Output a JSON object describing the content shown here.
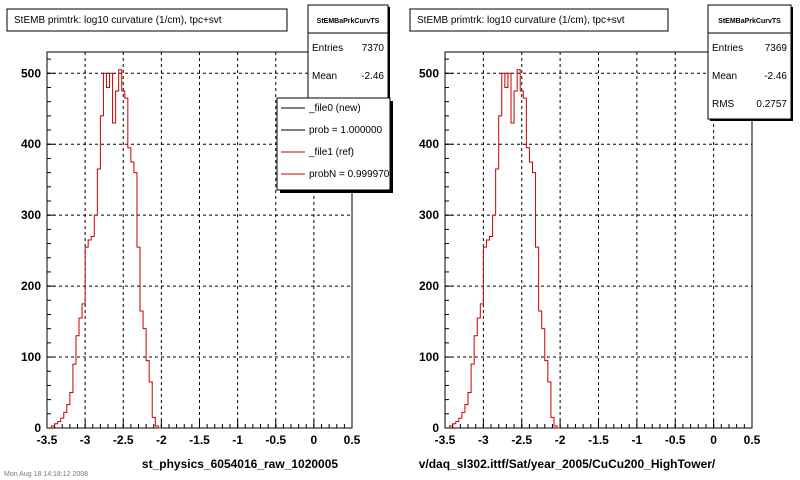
{
  "footer_text": "Mon Aug 18 14:18:12 2008",
  "chart_data": [
    {
      "type": "histogram",
      "title": "StEMB primtrk: log10 curvature (1/cm), tpc+svt",
      "xlabel": "st_physics_6054016_raw_1020005",
      "ylabel": "",
      "xlim": [
        -3.5,
        0.5
      ],
      "ylim": [
        0,
        530
      ],
      "x_ticks": [
        -3.5,
        -3,
        -2.5,
        -2,
        -1.5,
        -1,
        -0.5,
        0,
        0.5
      ],
      "x_tick_labels": [
        "-3.5",
        "-3",
        "-2.5",
        "-2",
        "-1.5",
        "-1",
        "-0.5",
        "0",
        "0.5"
      ],
      "y_ticks": [
        0,
        100,
        200,
        300,
        400,
        500
      ],
      "y_tick_labels": [
        "0",
        "100",
        "200",
        "300",
        "400",
        "500"
      ],
      "grid": true,
      "bin_start": -3.44,
      "bin_width": 0.04,
      "values": [
        3,
        6,
        9,
        14,
        22,
        33,
        50,
        90,
        130,
        155,
        175,
        255,
        265,
        270,
        300,
        365,
        440,
        500,
        480,
        500,
        430,
        475,
        505,
        475,
        465,
        395,
        375,
        360,
        255,
        165,
        140,
        95,
        65,
        15,
        3,
        0
      ],
      "series_color": "#cc0000",
      "stats_box": {
        "name": "StEMBaPrkCurvTS",
        "rows": [
          {
            "label": "Entries",
            "value": "7370"
          },
          {
            "label": "Mean",
            "value": "-2.46"
          },
          {
            "label": "RMS",
            "value": "0.2757"
          }
        ]
      },
      "legend": {
        "placement": "top-right",
        "entries": [
          {
            "label": "_file0 (new)",
            "color": "#000000"
          },
          {
            "label": "prob = 1.000000",
            "color": "#000000"
          },
          {
            "label": "_file1 (ref)",
            "color": "#cc0000"
          },
          {
            "label": "probN = 0.999970",
            "color": "#cc0000"
          }
        ]
      }
    },
    {
      "type": "histogram",
      "title": "StEMB primtrk: log10 curvature (1/cm), tpc+svt",
      "xlabel": "v/daq_sl302.ittf/Sat/year_2005/CuCu200_HighTower/",
      "ylabel": "",
      "xlim": [
        -3.5,
        0.5
      ],
      "ylim": [
        0,
        530
      ],
      "x_ticks": [
        -3.5,
        -3,
        -2.5,
        -2,
        -1.5,
        -1,
        -0.5,
        0,
        0.5
      ],
      "x_tick_labels": [
        "-3.5",
        "-3",
        "-2.5",
        "-2",
        "-1.5",
        "-1",
        "-0.5",
        "0",
        "0.5"
      ],
      "y_ticks": [
        0,
        100,
        200,
        300,
        400,
        500
      ],
      "y_tick_labels": [
        "0",
        "100",
        "200",
        "300",
        "400",
        "500"
      ],
      "grid": true,
      "bin_start": -3.44,
      "bin_width": 0.04,
      "values": [
        3,
        6,
        9,
        14,
        22,
        33,
        50,
        90,
        130,
        155,
        175,
        255,
        265,
        270,
        300,
        365,
        440,
        500,
        480,
        500,
        430,
        475,
        505,
        475,
        465,
        395,
        375,
        360,
        255,
        165,
        140,
        95,
        65,
        15,
        3,
        0
      ],
      "series_color": "#cc0000",
      "stats_box": {
        "name": "StEMBaPrkCurvTS",
        "rows": [
          {
            "label": "Entries",
            "value": "7369"
          },
          {
            "label": "Mean",
            "value": "-2.46"
          },
          {
            "label": "RMS",
            "value": "0.2757"
          }
        ]
      }
    }
  ]
}
